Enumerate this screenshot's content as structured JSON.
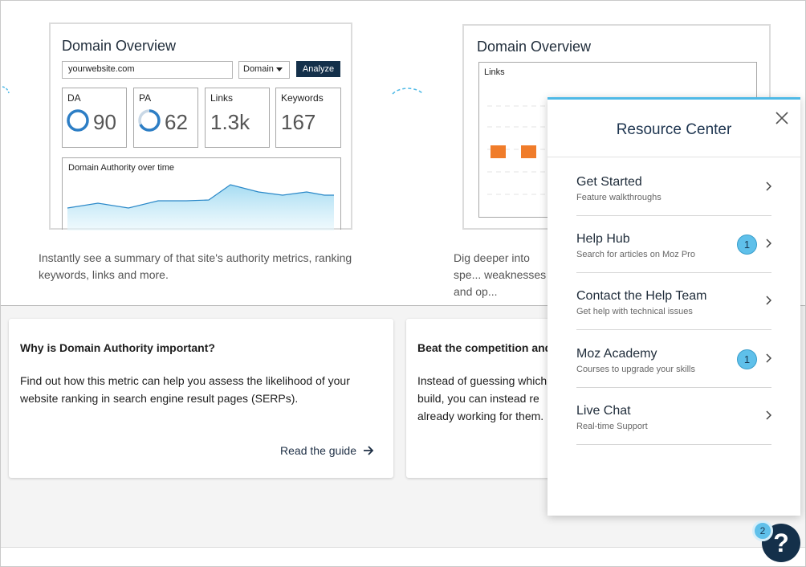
{
  "overview_left": {
    "title": "Domain Overview",
    "url_value": "yourwebsite.com",
    "select_value": "Domain",
    "analyze_label": "Analyze",
    "metrics": [
      {
        "label": "DA",
        "value": "90"
      },
      {
        "label": "PA",
        "value": "62"
      },
      {
        "label": "Links",
        "value": "1.3k"
      },
      {
        "label": "Keywords",
        "value": "167"
      }
    ],
    "chart_title": "Domain Authority over time",
    "description": "Instantly see a summary of that site's authority metrics, ranking keywords, links and more."
  },
  "overview_right": {
    "title": "Domain Overview",
    "links_label": "Links",
    "description": "Dig deeper into spe... weaknesses and op..."
  },
  "cards": [
    {
      "title": "Why is Domain Authority important?",
      "body": "Find out how this metric can help you assess the likelihood of your website ranking in search engine result pages (SERPs).",
      "link": "Read the guide"
    },
    {
      "title": "Beat the competition and",
      "body": "Instead of guessing which to build, you can instead re already working for them."
    }
  ],
  "resource_center": {
    "title": "Resource Center",
    "items": [
      {
        "label": "Get Started",
        "sub": "Feature walkthroughs",
        "badge": null
      },
      {
        "label": "Help Hub",
        "sub": "Search for articles on Moz Pro",
        "badge": "1"
      },
      {
        "label": "Contact the Help Team",
        "sub": "Get help with technical issues",
        "badge": null
      },
      {
        "label": "Moz Academy",
        "sub": "Courses to upgrade your skills",
        "badge": "1"
      },
      {
        "label": "Live Chat",
        "sub": "Real-time Support",
        "badge": null
      }
    ]
  },
  "help_button": {
    "label": "?",
    "badge": "2"
  },
  "colors": {
    "accent": "#4eb9e6",
    "navy": "#14304a",
    "orange": "#f07c2a"
  }
}
